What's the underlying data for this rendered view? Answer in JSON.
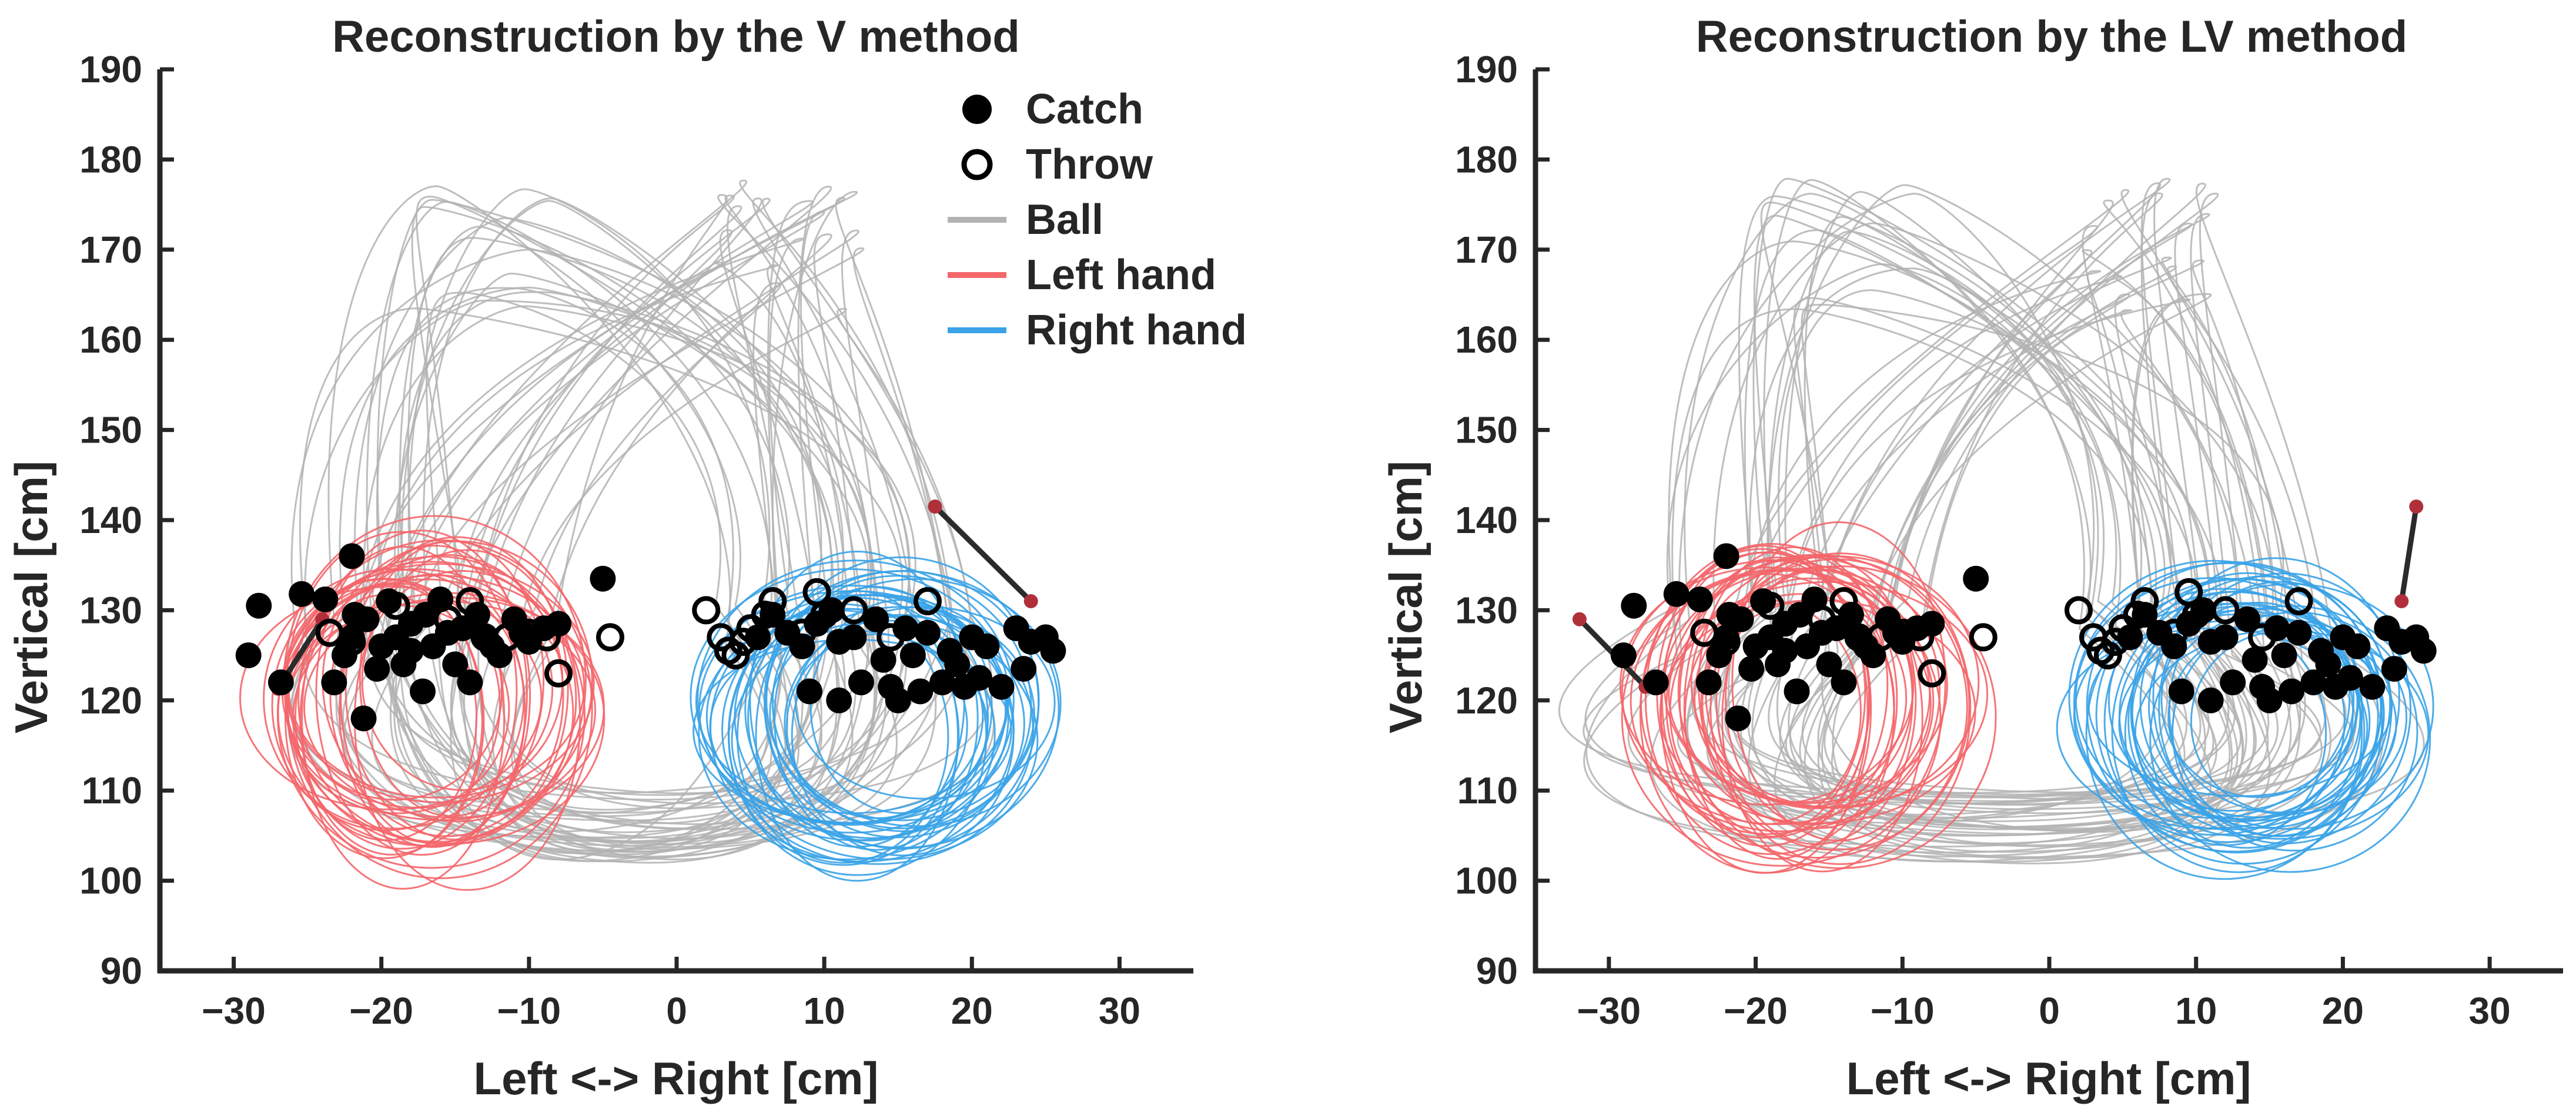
{
  "chart_data": [
    {
      "type": "line+scatter",
      "title": "Reconstruction by the V method",
      "xlabel": "Left <-> Right [cm]",
      "ylabel": "Vertical  [cm]",
      "xlim": [
        -35,
        35
      ],
      "ylim": [
        90,
        190
      ],
      "xticks": [
        -30,
        -20,
        -10,
        0,
        10,
        20,
        30
      ],
      "xtick_labels": [
        "−30",
        "−20",
        "−10",
        "0",
        "10",
        "20",
        "30"
      ],
      "yticks": [
        90,
        100,
        110,
        120,
        130,
        140,
        150,
        160,
        170,
        180,
        190
      ],
      "ytick_labels": [
        "90",
        "100",
        "110",
        "120",
        "130",
        "140",
        "150",
        "160",
        "170",
        "180",
        "190"
      ],
      "legend_position": "top-right",
      "legend": [
        {
          "label": "Catch",
          "kind": "filled-circle",
          "color": "#000000"
        },
        {
          "label": "Throw",
          "kind": "open-circle",
          "color": "#000000"
        },
        {
          "label": "Ball",
          "kind": "line",
          "color": "#b3b3b3"
        },
        {
          "label": "Left hand",
          "kind": "line",
          "color": "#f4666a"
        },
        {
          "label": "Right hand",
          "kind": "line",
          "color": "#3aa3e8"
        }
      ],
      "ball_paths": {
        "color": "#b3b3b3",
        "loop_count": 40,
        "left_apex_x": -13,
        "right_apex_x": 8,
        "apex_y_range": [
          163,
          178
        ],
        "bottom_y": 100,
        "outer_x": [
          -24,
          22
        ]
      },
      "left_hand_loops": {
        "color": "#f4666a",
        "center": [
          -17,
          120
        ],
        "x_range": [
          -28,
          -6
        ],
        "y_range": [
          102,
          140
        ],
        "loop_count": 30
      },
      "right_hand_loops": {
        "color": "#3aa3e8",
        "center": [
          14,
          118
        ],
        "x_range": [
          2,
          24
        ],
        "y_range": [
          102,
          135
        ],
        "loop_count": 30
      },
      "catch_points": [
        [
          -29,
          125
        ],
        [
          -28.3,
          130.5
        ],
        [
          -26.8,
          122
        ],
        [
          -25.4,
          131.8
        ],
        [
          -23.8,
          131.2
        ],
        [
          -22,
          136
        ],
        [
          -21.2,
          118
        ],
        [
          -23.2,
          122
        ],
        [
          -22,
          127
        ],
        [
          -21,
          129
        ],
        [
          -20,
          126
        ],
        [
          -19.5,
          131
        ],
        [
          -18.5,
          124
        ],
        [
          -18,
          128.5
        ],
        [
          -17.2,
          121
        ],
        [
          -16.5,
          126
        ],
        [
          -16,
          131.2
        ],
        [
          -15,
          124
        ],
        [
          -14.5,
          128
        ],
        [
          -14,
          122
        ],
        [
          -13,
          127
        ],
        [
          -12,
          125
        ],
        [
          -11,
          129
        ],
        [
          -10,
          126.5
        ],
        [
          -9,
          128
        ],
        [
          -8,
          128.5
        ],
        [
          -22.5,
          125
        ],
        [
          -21.8,
          129.5
        ],
        [
          -20.3,
          123.5
        ],
        [
          -19,
          127
        ],
        [
          -18,
          125.5
        ],
        [
          -17,
          129.5
        ],
        [
          -15.5,
          127.5
        ],
        [
          -13.5,
          129.5
        ],
        [
          -12.5,
          126
        ],
        [
          -10.5,
          127.5
        ],
        [
          -5,
          133.5
        ],
        [
          5.5,
          127
        ],
        [
          6.5,
          129.5
        ],
        [
          7.5,
          127.5
        ],
        [
          8.5,
          126
        ],
        [
          9,
          121
        ],
        [
          9.5,
          128.5
        ],
        [
          10.5,
          130
        ],
        [
          11,
          126.5
        ],
        [
          11,
          120
        ],
        [
          12,
          127
        ],
        [
          12.5,
          122
        ],
        [
          13.5,
          129
        ],
        [
          14,
          124.5
        ],
        [
          14.5,
          121.5
        ],
        [
          15,
          120
        ],
        [
          15.5,
          128
        ],
        [
          16,
          125
        ],
        [
          16.5,
          121
        ],
        [
          17,
          127.5
        ],
        [
          18,
          122
        ],
        [
          18.5,
          125.5
        ],
        [
          19,
          124
        ],
        [
          19.5,
          121.5
        ],
        [
          20,
          127
        ],
        [
          20.5,
          122.5
        ],
        [
          21,
          126
        ],
        [
          22,
          121.5
        ],
        [
          23,
          128
        ],
        [
          23.5,
          123.5
        ],
        [
          24,
          126.5
        ],
        [
          25,
          127
        ],
        [
          25.5,
          125.5
        ]
      ],
      "throw_points": [
        [
          -23.5,
          127.5
        ],
        [
          -22,
          126.5
        ],
        [
          -19,
          130.5
        ],
        [
          -15.5,
          129
        ],
        [
          -14,
          131
        ],
        [
          -13,
          127
        ],
        [
          -11.5,
          127
        ],
        [
          -10,
          127.5
        ],
        [
          -8.8,
          127
        ],
        [
          -8,
          123
        ],
        [
          -4.5,
          127
        ],
        [
          2,
          130
        ],
        [
          3,
          127
        ],
        [
          3.5,
          125.5
        ],
        [
          4,
          125
        ],
        [
          4.5,
          126.5
        ],
        [
          5,
          128
        ],
        [
          6,
          129.5
        ],
        [
          6.5,
          131
        ],
        [
          8.5,
          127.5
        ],
        [
          9.5,
          132
        ],
        [
          10,
          129.5
        ],
        [
          12,
          130
        ],
        [
          14.5,
          127
        ],
        [
          17,
          131
        ]
      ],
      "connectors": [
        [
          [
            -27,
            121.3
          ],
          [
            -24,
            129
          ]
        ],
        [
          [
            17.5,
            141.5
          ],
          [
            24,
            131
          ]
        ]
      ]
    },
    {
      "type": "line+scatter",
      "title": "Reconstruction by the LV method",
      "xlabel": "Left <-> Right [cm]",
      "ylabel": "Vertical  [cm]",
      "xlim": [
        -35,
        35
      ],
      "ylim": [
        90,
        190
      ],
      "xticks": [
        -30,
        -20,
        -10,
        0,
        10,
        20,
        30
      ],
      "xtick_labels": [
        "−30",
        "−20",
        "−10",
        "0",
        "10",
        "20",
        "30"
      ],
      "yticks": [
        90,
        100,
        110,
        120,
        130,
        140,
        150,
        160,
        170,
        180,
        190
      ],
      "ytick_labels": [
        "90",
        "100",
        "110",
        "120",
        "130",
        "140",
        "150",
        "160",
        "170",
        "180",
        "190"
      ],
      "ball_paths": {
        "color": "#b3b3b3",
        "loop_count": 40,
        "left_apex_x": -14,
        "right_apex_x": 7,
        "apex_y_range": [
          163,
          178
        ],
        "bottom_y": 100,
        "outer_x": [
          -33,
          29
        ]
      },
      "left_hand_loops": {
        "color": "#f4666a",
        "center": [
          -17,
          120
        ],
        "x_range": [
          -28,
          -6
        ],
        "y_range": [
          102,
          140
        ],
        "loop_count": 30
      },
      "right_hand_loops": {
        "color": "#3aa3e8",
        "center": [
          14,
          118
        ],
        "x_range": [
          2,
          24
        ],
        "y_range": [
          102,
          135
        ],
        "loop_count": 30
      },
      "catch_points": [
        [
          -29,
          125
        ],
        [
          -28.3,
          130.5
        ],
        [
          -26.8,
          122
        ],
        [
          -25.4,
          131.8
        ],
        [
          -23.8,
          131.2
        ],
        [
          -22,
          136
        ],
        [
          -21.2,
          118
        ],
        [
          -23.2,
          122
        ],
        [
          -22,
          127
        ],
        [
          -21,
          129
        ],
        [
          -20,
          126
        ],
        [
          -19.5,
          131
        ],
        [
          -18.5,
          124
        ],
        [
          -18,
          128.5
        ],
        [
          -17.2,
          121
        ],
        [
          -16.5,
          126
        ],
        [
          -16,
          131.2
        ],
        [
          -15,
          124
        ],
        [
          -14.5,
          128
        ],
        [
          -14,
          122
        ],
        [
          -13,
          127
        ],
        [
          -12,
          125
        ],
        [
          -11,
          129
        ],
        [
          -10,
          126.5
        ],
        [
          -9,
          128
        ],
        [
          -8,
          128.5
        ],
        [
          -22.5,
          125
        ],
        [
          -21.8,
          129.5
        ],
        [
          -20.3,
          123.5
        ],
        [
          -19,
          127
        ],
        [
          -18,
          125.5
        ],
        [
          -17,
          129.5
        ],
        [
          -15.5,
          127.5
        ],
        [
          -13.5,
          129.5
        ],
        [
          -12.5,
          126
        ],
        [
          -10.5,
          127.5
        ],
        [
          -5,
          133.5
        ],
        [
          5.5,
          127
        ],
        [
          6.5,
          129.5
        ],
        [
          7.5,
          127.5
        ],
        [
          8.5,
          126
        ],
        [
          9,
          121
        ],
        [
          9.5,
          128.5
        ],
        [
          10.5,
          130
        ],
        [
          11,
          126.5
        ],
        [
          11,
          120
        ],
        [
          12,
          127
        ],
        [
          12.5,
          122
        ],
        [
          13.5,
          129
        ],
        [
          14,
          124.5
        ],
        [
          14.5,
          121.5
        ],
        [
          15,
          120
        ],
        [
          15.5,
          128
        ],
        [
          16,
          125
        ],
        [
          16.5,
          121
        ],
        [
          17,
          127.5
        ],
        [
          18,
          122
        ],
        [
          18.5,
          125.5
        ],
        [
          19,
          124
        ],
        [
          19.5,
          121.5
        ],
        [
          20,
          127
        ],
        [
          20.5,
          122.5
        ],
        [
          21,
          126
        ],
        [
          22,
          121.5
        ],
        [
          23,
          128
        ],
        [
          23.5,
          123.5
        ],
        [
          24,
          126.5
        ],
        [
          25,
          127
        ],
        [
          25.5,
          125.5
        ]
      ],
      "throw_points": [
        [
          -23.5,
          127.5
        ],
        [
          -22,
          126.5
        ],
        [
          -19,
          130.5
        ],
        [
          -15.5,
          129
        ],
        [
          -14,
          131
        ],
        [
          -13,
          127
        ],
        [
          -11.5,
          127
        ],
        [
          -10,
          127.5
        ],
        [
          -8.8,
          127
        ],
        [
          -8,
          123
        ],
        [
          -4.5,
          127
        ],
        [
          2,
          130
        ],
        [
          3,
          127
        ],
        [
          3.5,
          125.5
        ],
        [
          4,
          125
        ],
        [
          4.5,
          126.5
        ],
        [
          5,
          128
        ],
        [
          6,
          129.5
        ],
        [
          6.5,
          131
        ],
        [
          8.5,
          127.5
        ],
        [
          9.5,
          132
        ],
        [
          10,
          129.5
        ],
        [
          12,
          130
        ],
        [
          14.5,
          127
        ],
        [
          17,
          131
        ]
      ],
      "connectors": [
        [
          [
            -32,
            129
          ],
          [
            -27.5,
            121.5
          ]
        ],
        [
          [
            25,
            141.5
          ],
          [
            24,
            131
          ]
        ]
      ]
    }
  ]
}
